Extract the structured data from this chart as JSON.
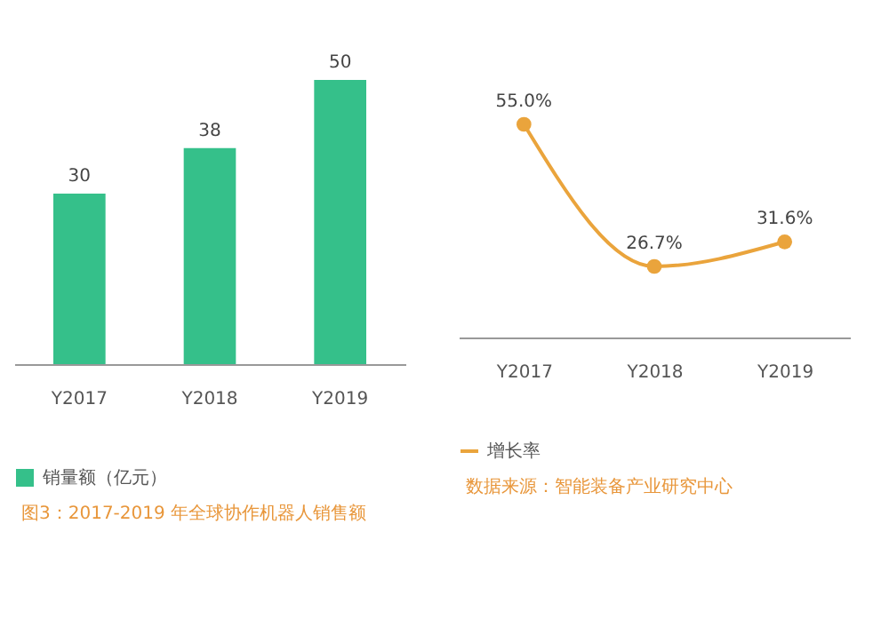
{
  "chart_data": [
    {
      "type": "bar",
      "categories": [
        "Y2017",
        "Y2018",
        "Y2019"
      ],
      "series": [
        {
          "name": "销量额（亿元）",
          "color": "#35c08a",
          "values": [
            30,
            38,
            50
          ]
        }
      ],
      "data_labels": true,
      "legend": "bottom",
      "annotations": [
        "图3：2017-2019 年全球协作机器人销售额"
      ]
    },
    {
      "type": "line",
      "categories": [
        "Y2017",
        "Y2018",
        "Y2019"
      ],
      "series": [
        {
          "name": "增长率",
          "color": "#eaa43c",
          "values": [
            55.0,
            26.7,
            31.6
          ],
          "value_labels": [
            "55.0%",
            "26.7%",
            "31.6%"
          ]
        }
      ],
      "marker": "circle",
      "legend": "bottom",
      "annotations": [
        "数据来源：智能装备产业研究中心"
      ]
    }
  ]
}
